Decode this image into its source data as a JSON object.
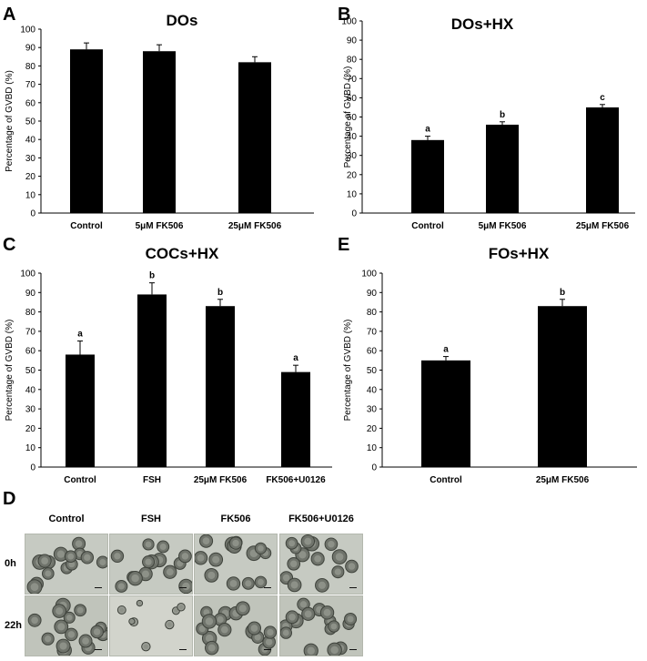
{
  "chart_data": [
    {
      "panel": "A",
      "type": "bar",
      "title": "DOs",
      "ylabel": "Percentage of GVBD (%)",
      "ylim": [
        0,
        100
      ],
      "yticks": [
        0,
        10,
        20,
        30,
        40,
        50,
        60,
        70,
        80,
        90,
        100
      ],
      "categories": [
        "Control",
        "5μM FK506",
        "25μM FK506"
      ],
      "values": [
        89,
        88,
        82
      ],
      "errors": [
        3.5,
        3.5,
        3
      ],
      "sig_labels": [
        "",
        "",
        ""
      ],
      "bar_color": "#000000"
    },
    {
      "panel": "B",
      "type": "bar",
      "title": "DOs+HX",
      "ylabel": "Percentage of GVBD (%)",
      "ylim": [
        0,
        100
      ],
      "yticks": [
        0,
        10,
        20,
        30,
        40,
        50,
        60,
        70,
        80,
        90,
        100
      ],
      "categories": [
        "Control",
        "5μM FK506",
        "25μM FK506"
      ],
      "values": [
        38,
        46,
        55
      ],
      "errors": [
        2,
        1.5,
        1.5
      ],
      "sig_labels": [
        "a",
        "b",
        "c"
      ],
      "bar_color": "#000000"
    },
    {
      "panel": "C",
      "type": "bar",
      "title": "COCs+HX",
      "ylabel": "Percentage of GVBD (%)",
      "ylim": [
        0,
        100
      ],
      "yticks": [
        0,
        10,
        20,
        30,
        40,
        50,
        60,
        70,
        80,
        90,
        100
      ],
      "categories": [
        "Control",
        "FSH",
        "25μM FK506",
        "FK506+U0126"
      ],
      "values": [
        58,
        89,
        83,
        49
      ],
      "errors": [
        7,
        6,
        3.5,
        3.5
      ],
      "sig_labels": [
        "a",
        "b",
        "b",
        "a"
      ],
      "bar_color": "#000000"
    },
    {
      "panel": "E",
      "type": "bar",
      "title": "FOs+HX",
      "ylabel": "Percentage of GVBD (%)",
      "ylim": [
        0,
        100
      ],
      "yticks": [
        0,
        10,
        20,
        30,
        40,
        50,
        60,
        70,
        80,
        90,
        100
      ],
      "categories": [
        "Control",
        "25μM FK506"
      ],
      "values": [
        55,
        83
      ],
      "errors": [
        2,
        3.5
      ],
      "sig_labels": [
        "a",
        "b"
      ],
      "bar_color": "#000000"
    }
  ],
  "micrographs": {
    "panel": "D",
    "columns": [
      "Control",
      "FSH",
      "FK506",
      "FK506+U0126"
    ],
    "rows": [
      "0h",
      "22h"
    ]
  }
}
